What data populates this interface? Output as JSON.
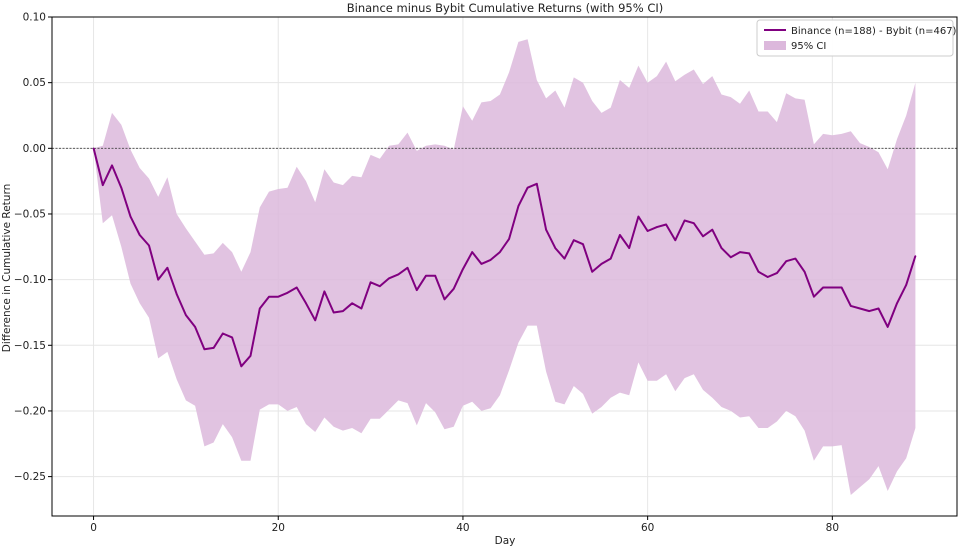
{
  "chart_data": {
    "type": "line",
    "title": "Binance minus Bybit Cumulative Returns (with 95% CI)",
    "xlabel": "Day",
    "ylabel": "Difference in Cumulative Return",
    "xlim": [
      -4.5,
      93.5
    ],
    "ylim": [
      -0.28,
      0.1
    ],
    "xticks": [
      0,
      20,
      40,
      60,
      80
    ],
    "xtick_labels": [
      "0",
      "20",
      "40",
      "60",
      "80"
    ],
    "yticks": [
      0.1,
      0.05,
      0.0,
      -0.05,
      -0.1,
      -0.15,
      -0.2,
      -0.25
    ],
    "ytick_labels": [
      "0.10",
      "0.05",
      "0.00",
      "−0.05",
      "−0.10",
      "−0.15",
      "−0.20",
      "−0.25"
    ],
    "grid": true,
    "legend_position": "top-right",
    "reference_line": 0.0,
    "colors": {
      "line": "#800080",
      "band": "#dcb8dc",
      "reference": "#444444",
      "grid": "#e6e6e6"
    },
    "series": [
      {
        "name": "Binance (n=188) - Bybit (n=467)",
        "x": [
          0,
          1,
          2,
          3,
          4,
          5,
          6,
          7,
          8,
          9,
          10,
          11,
          12,
          13,
          14,
          15,
          16,
          17,
          18,
          19,
          20,
          21,
          22,
          23,
          24,
          25,
          26,
          27,
          28,
          29,
          30,
          31,
          32,
          33,
          34,
          35,
          36,
          37,
          38,
          39,
          40,
          41,
          42,
          43,
          44,
          45,
          46,
          47,
          48,
          49,
          50,
          51,
          52,
          53,
          54,
          55,
          56,
          57,
          58,
          59,
          60,
          61,
          62,
          63,
          64,
          65,
          66,
          67,
          68,
          69,
          70,
          71,
          72,
          73,
          74,
          75,
          76,
          77,
          78,
          79,
          80,
          81,
          82,
          83,
          84,
          85,
          86,
          87,
          88,
          89
        ],
        "y": [
          0.0,
          -0.028,
          -0.013,
          -0.03,
          -0.052,
          -0.066,
          -0.074,
          -0.1,
          -0.091,
          -0.111,
          -0.127,
          -0.136,
          -0.153,
          -0.152,
          -0.141,
          -0.144,
          -0.166,
          -0.158,
          -0.122,
          -0.113,
          -0.113,
          -0.11,
          -0.106,
          -0.118,
          -0.131,
          -0.109,
          -0.125,
          -0.124,
          -0.118,
          -0.122,
          -0.102,
          -0.105,
          -0.099,
          -0.096,
          -0.091,
          -0.108,
          -0.097,
          -0.097,
          -0.115,
          -0.107,
          -0.092,
          -0.079,
          -0.088,
          -0.085,
          -0.079,
          -0.069,
          -0.044,
          -0.03,
          -0.027,
          -0.062,
          -0.076,
          -0.084,
          -0.07,
          -0.073,
          -0.094,
          -0.088,
          -0.084,
          -0.066,
          -0.076,
          -0.052,
          -0.063,
          -0.06,
          -0.058,
          -0.07,
          -0.055,
          -0.057,
          -0.067,
          -0.062,
          -0.076,
          -0.083,
          -0.079,
          -0.08,
          -0.094,
          -0.098,
          -0.095,
          -0.086,
          -0.084,
          -0.094,
          -0.113,
          -0.106,
          -0.106,
          -0.106,
          -0.12,
          -0.122,
          -0.124,
          -0.122,
          -0.136,
          -0.118,
          -0.104,
          -0.082
        ]
      }
    ],
    "ci_band": {
      "name": "95% CI",
      "upper": [
        0.0,
        0.002,
        0.027,
        0.018,
        -0.001,
        -0.015,
        -0.023,
        -0.037,
        -0.022,
        -0.05,
        -0.061,
        -0.071,
        -0.081,
        -0.08,
        -0.072,
        -0.079,
        -0.094,
        -0.079,
        -0.045,
        -0.033,
        -0.031,
        -0.03,
        -0.014,
        -0.025,
        -0.041,
        -0.016,
        -0.026,
        -0.028,
        -0.021,
        -0.022,
        -0.005,
        -0.008,
        0.002,
        0.003,
        0.012,
        -0.002,
        0.002,
        0.003,
        0.002,
        -0.001,
        0.032,
        0.021,
        0.035,
        0.036,
        0.041,
        0.058,
        0.081,
        0.083,
        0.052,
        0.038,
        0.044,
        0.031,
        0.054,
        0.05,
        0.036,
        0.027,
        0.031,
        0.052,
        0.046,
        0.063,
        0.05,
        0.055,
        0.066,
        0.051,
        0.056,
        0.06,
        0.049,
        0.055,
        0.041,
        0.039,
        0.034,
        0.044,
        0.028,
        0.028,
        0.02,
        0.042,
        0.038,
        0.037,
        0.003,
        0.011,
        0.01,
        0.011,
        0.013,
        0.004,
        0.001,
        -0.003,
        -0.016,
        0.007,
        0.025,
        0.05
      ],
      "lower": [
        0.0,
        -0.057,
        -0.051,
        -0.075,
        -0.103,
        -0.118,
        -0.129,
        -0.16,
        -0.155,
        -0.176,
        -0.192,
        -0.196,
        -0.227,
        -0.224,
        -0.21,
        -0.22,
        -0.238,
        -0.238,
        -0.199,
        -0.195,
        -0.195,
        -0.2,
        -0.197,
        -0.21,
        -0.216,
        -0.205,
        -0.212,
        -0.215,
        -0.213,
        -0.217,
        -0.206,
        -0.206,
        -0.199,
        -0.192,
        -0.194,
        -0.211,
        -0.194,
        -0.201,
        -0.214,
        -0.212,
        -0.196,
        -0.193,
        -0.2,
        -0.198,
        -0.188,
        -0.169,
        -0.148,
        -0.135,
        -0.135,
        -0.17,
        -0.193,
        -0.195,
        -0.181,
        -0.187,
        -0.202,
        -0.197,
        -0.19,
        -0.186,
        -0.188,
        -0.163,
        -0.177,
        -0.177,
        -0.172,
        -0.185,
        -0.175,
        -0.172,
        -0.184,
        -0.19,
        -0.197,
        -0.2,
        -0.205,
        -0.204,
        -0.213,
        -0.213,
        -0.208,
        -0.2,
        -0.204,
        -0.215,
        -0.238,
        -0.227,
        -0.227,
        -0.226,
        -0.264,
        -0.258,
        -0.252,
        -0.242,
        -0.261,
        -0.246,
        -0.236,
        -0.213
      ]
    }
  }
}
